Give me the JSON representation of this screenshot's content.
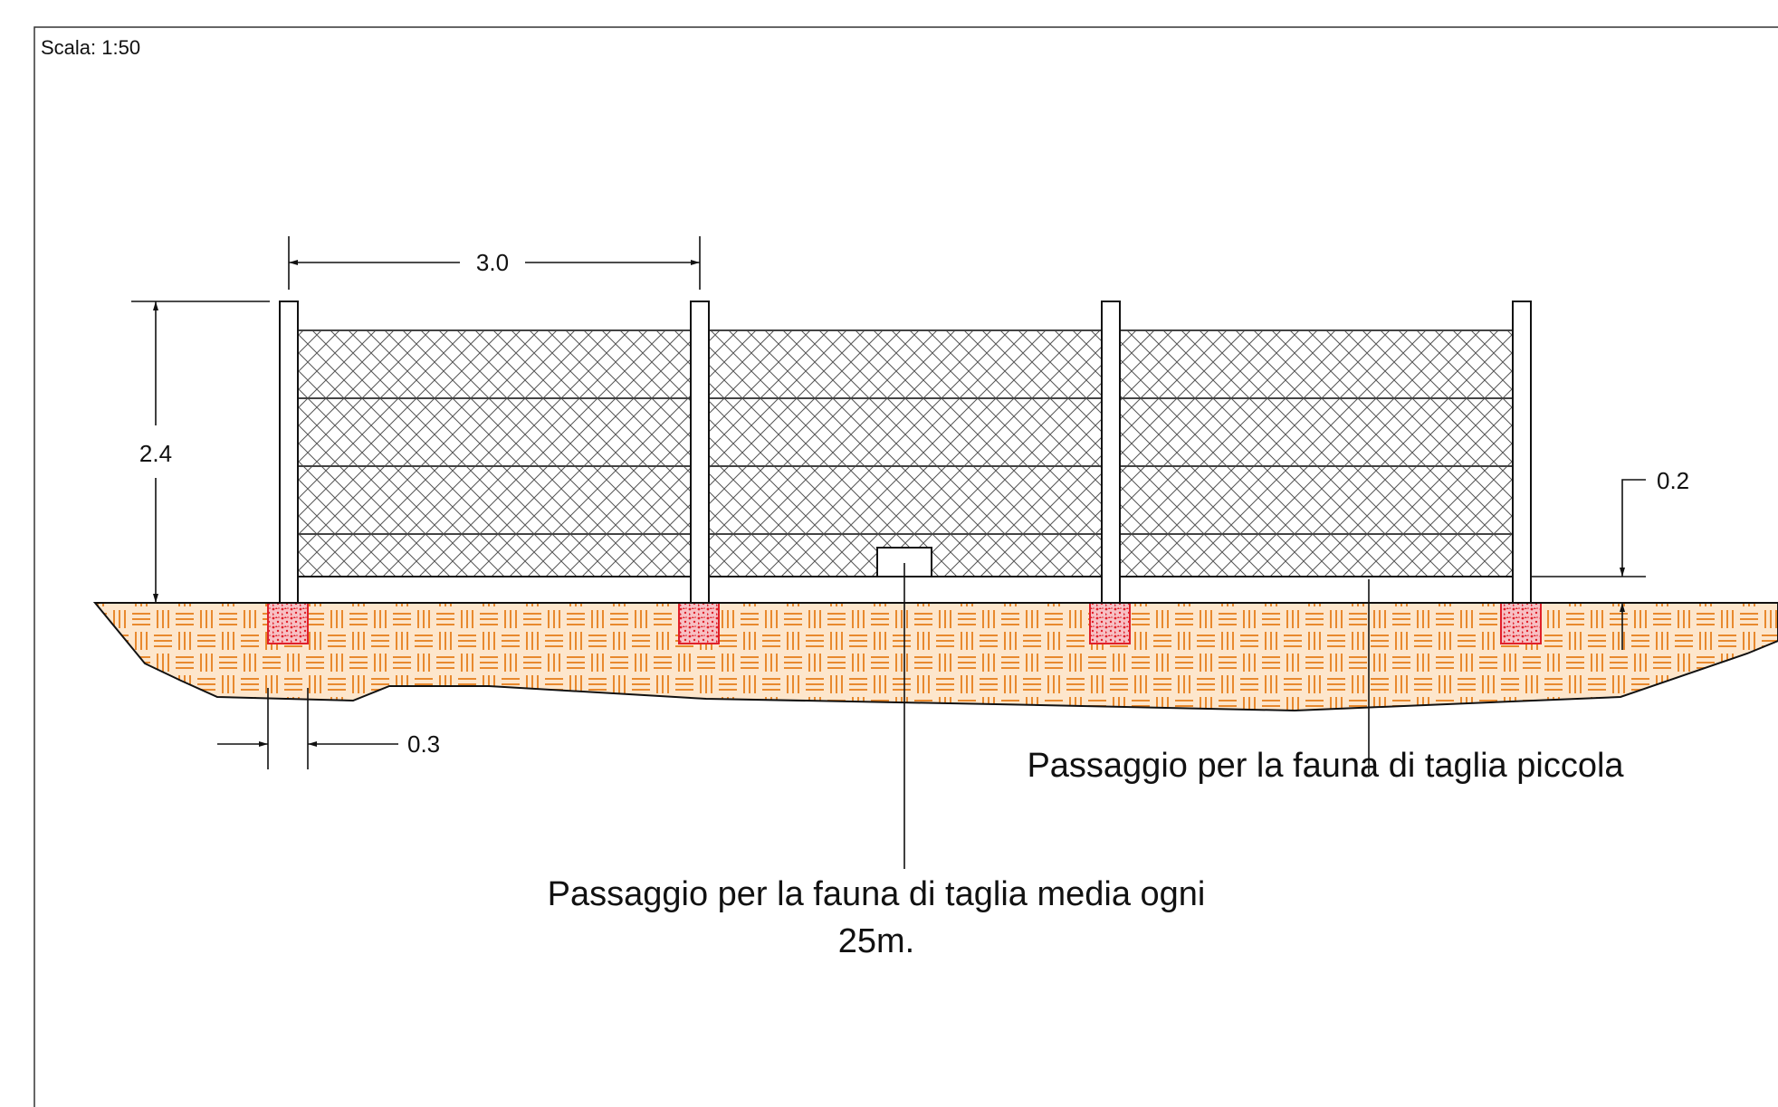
{
  "scale_label": "Scala: 1:50",
  "dimensions": {
    "post_spacing": "3.0",
    "fence_height": "2.4",
    "footing_width": "0.3",
    "small_passage_height": "0.2"
  },
  "labels": {
    "small_fauna": "Passaggio per la fauna di taglia piccola",
    "medium_fauna_line1": "Passaggio per la fauna di taglia media ogni",
    "medium_fauna_line2": "25m."
  },
  "colors": {
    "soil": "#e8892e",
    "soil_bg": "#fde6cc",
    "footing": "#e0202a",
    "footing_bg": "#f7c0c4",
    "line": "#111111"
  }
}
